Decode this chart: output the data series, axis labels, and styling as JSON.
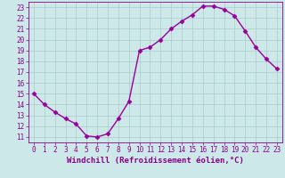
{
  "x": [
    0,
    1,
    2,
    3,
    4,
    5,
    6,
    7,
    8,
    9,
    10,
    11,
    12,
    13,
    14,
    15,
    16,
    17,
    18,
    19,
    20,
    21,
    22,
    23
  ],
  "y": [
    15.0,
    14.0,
    13.3,
    12.7,
    12.2,
    11.1,
    11.0,
    11.3,
    12.7,
    14.3,
    19.0,
    19.3,
    20.0,
    21.0,
    21.7,
    22.3,
    23.1,
    23.1,
    22.8,
    22.2,
    20.8,
    19.3,
    18.2,
    17.3
  ],
  "line_color": "#990099",
  "marker": "D",
  "marker_size": 2.5,
  "bg_color": "#cce8e8",
  "grid_color": "#aacccc",
  "xlabel": "Windchill (Refroidissement éolien,°C)",
  "ylim": [
    11,
    23
  ],
  "xlim": [
    0,
    23
  ],
  "yticks": [
    11,
    12,
    13,
    14,
    15,
    16,
    17,
    18,
    19,
    20,
    21,
    22,
    23
  ],
  "xticks": [
    0,
    1,
    2,
    3,
    4,
    5,
    6,
    7,
    8,
    9,
    10,
    11,
    12,
    13,
    14,
    15,
    16,
    17,
    18,
    19,
    20,
    21,
    22,
    23
  ],
  "tick_color": "#880088",
  "label_color": "#880088",
  "label_fontsize": 6.5,
  "tick_fontsize": 5.5,
  "linewidth": 1.0
}
